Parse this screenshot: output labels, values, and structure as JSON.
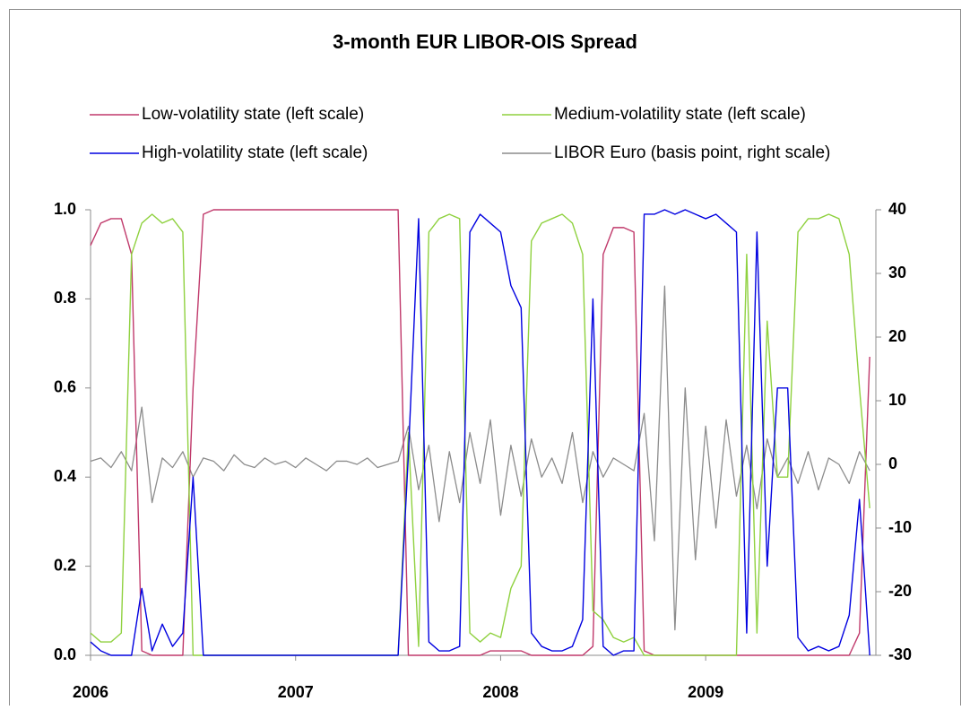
{
  "chart_data": {
    "type": "line",
    "title": "3-month EUR LIBOR-OIS Spread",
    "x": [
      2006,
      2006.05,
      2006.1,
      2006.15,
      2006.2,
      2006.25,
      2006.3,
      2006.35,
      2006.4,
      2006.45,
      2006.5,
      2006.55,
      2006.6,
      2006.65,
      2006.7,
      2006.75,
      2006.8,
      2006.85,
      2006.9,
      2006.95,
      2007,
      2007.05,
      2007.1,
      2007.15,
      2007.2,
      2007.25,
      2007.3,
      2007.35,
      2007.4,
      2007.45,
      2007.5,
      2007.55,
      2007.6,
      2007.65,
      2007.7,
      2007.75,
      2007.8,
      2007.85,
      2007.9,
      2007.95,
      2008,
      2008.05,
      2008.1,
      2008.15,
      2008.2,
      2008.25,
      2008.3,
      2008.35,
      2008.4,
      2008.45,
      2008.5,
      2008.55,
      2008.6,
      2008.65,
      2008.7,
      2008.75,
      2008.8,
      2008.85,
      2008.9,
      2008.95,
      2009,
      2009.05,
      2009.1,
      2009.15,
      2009.2,
      2009.25,
      2009.3,
      2009.35,
      2009.4,
      2009.45,
      2009.5,
      2009.55,
      2009.6,
      2009.65,
      2009.7,
      2009.75,
      2009.8
    ],
    "xlim": [
      2006,
      2009.83
    ],
    "xticks": [
      2006,
      2007,
      2008,
      2009
    ],
    "ylim": [
      0,
      1
    ],
    "yticks": [
      {
        "value": 0,
        "label": "0.0"
      },
      0.2,
      0.4,
      0.6,
      0.8,
      {
        "value": 1,
        "label": "1.0"
      }
    ],
    "y2lim": [
      -30,
      40
    ],
    "y2ticks": [
      -30,
      -20,
      -10,
      0,
      10,
      20,
      30,
      40
    ],
    "series": [
      {
        "name": "Low-volatility state (left scale)",
        "color": "#c0396b",
        "values": [
          0.92,
          0.97,
          0.98,
          0.98,
          0.9,
          0.01,
          0,
          0,
          0,
          0,
          0.6,
          0.99,
          1,
          1,
          1,
          1,
          1,
          1,
          1,
          1,
          1,
          1,
          1,
          1,
          1,
          1,
          1,
          1,
          1,
          1,
          1,
          0,
          0,
          0,
          0,
          0,
          0,
          0,
          0,
          0.01,
          0.01,
          0.01,
          0.01,
          0,
          0,
          0,
          0,
          0,
          0,
          0.02,
          0.9,
          0.96,
          0.96,
          0.95,
          0.01,
          0,
          0,
          0,
          0,
          0,
          0,
          0,
          0,
          0,
          0,
          0,
          0,
          0,
          0,
          0,
          0,
          0,
          0,
          0,
          0,
          0.05,
          0.67
        ]
      },
      {
        "name": "Medium-volatility state (left scale)",
        "color": "#8fd13f",
        "values": [
          0.05,
          0.03,
          0.03,
          0.05,
          0.9,
          0.97,
          0.99,
          0.97,
          0.98,
          0.95,
          0,
          0,
          0,
          0,
          0,
          0,
          0,
          0,
          0,
          0,
          0,
          0,
          0,
          0,
          0,
          0,
          0,
          0,
          0,
          0,
          0,
          0.5,
          0.02,
          0.95,
          0.98,
          0.99,
          0.98,
          0.05,
          0.03,
          0.05,
          0.04,
          0.15,
          0.2,
          0.93,
          0.97,
          0.98,
          0.99,
          0.97,
          0.9,
          0.1,
          0.08,
          0.04,
          0.03,
          0.04,
          0,
          0,
          0,
          0,
          0,
          0,
          0,
          0,
          0,
          0,
          0.9,
          0.05,
          0.75,
          0.4,
          0.4,
          0.95,
          0.98,
          0.98,
          0.99,
          0.98,
          0.9,
          0.6,
          0.33
        ]
      },
      {
        "name": "High-volatility state (left scale)",
        "color": "#0000e0",
        "values": [
          0.03,
          0.01,
          0,
          0,
          0,
          0.15,
          0.01,
          0.07,
          0.02,
          0.05,
          0.4,
          0,
          0,
          0,
          0,
          0,
          0,
          0,
          0,
          0,
          0,
          0,
          0,
          0,
          0,
          0,
          0,
          0,
          0,
          0,
          0,
          0.45,
          0.98,
          0.03,
          0.01,
          0.01,
          0.02,
          0.95,
          0.99,
          0.97,
          0.95,
          0.83,
          0.78,
          0.05,
          0.02,
          0.01,
          0.01,
          0.02,
          0.08,
          0.8,
          0.02,
          0,
          0.01,
          0.01,
          0.99,
          0.99,
          1,
          0.99,
          1,
          0.99,
          0.98,
          0.99,
          0.97,
          0.95,
          0.05,
          0.95,
          0.2,
          0.6,
          0.6,
          0.04,
          0.01,
          0.02,
          0.01,
          0.02,
          0.09,
          0.35,
          0
        ]
      },
      {
        "name": "LIBOR Euro (basis point, right scale)",
        "color": "#8c8c8c",
        "axis": "y2",
        "values": [
          0.5,
          1,
          -0.5,
          2,
          -1,
          9,
          -6,
          1,
          -0.5,
          2,
          -2,
          1,
          0.5,
          -1,
          1.5,
          0,
          -0.5,
          1,
          0,
          0.5,
          -0.5,
          1,
          0,
          -1,
          0.5,
          0.5,
          0,
          1,
          -0.5,
          0,
          0.5,
          6,
          -4,
          3,
          -9,
          2,
          -6,
          5,
          -3,
          7,
          -8,
          3,
          -5,
          4,
          -2,
          1,
          -3,
          5,
          -6,
          2,
          -2,
          1,
          0,
          -1,
          8,
          -12,
          28,
          -26,
          12,
          -15,
          6,
          -10,
          7,
          -5,
          3,
          -7,
          4,
          -2,
          1,
          -3,
          2,
          -4,
          1,
          0,
          -3,
          2,
          -1
        ]
      }
    ]
  }
}
